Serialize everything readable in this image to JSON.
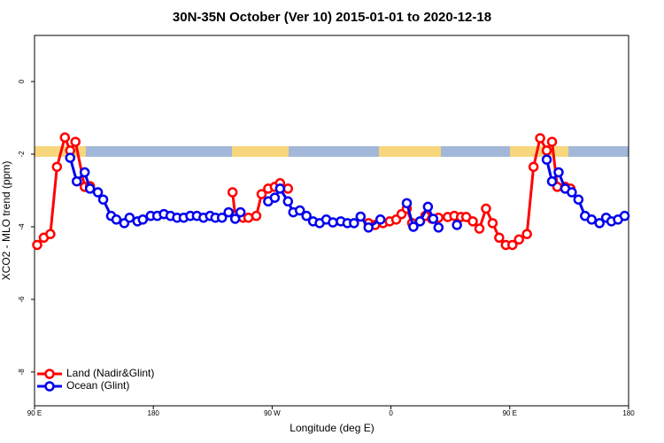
{
  "chart_data": {
    "type": "line",
    "title": "30N-35N October (Ver 10)   2015-01-01 to 2020-12-18",
    "x_label": "Longitude (deg E)",
    "y_label": "XCO2 - MLO trend (ppm)",
    "xlim": [
      90,
      540
    ],
    "ylim": [
      -8.93,
      1.27
    ],
    "xticks": [
      {
        "value": 90,
        "label": "90 E"
      },
      180,
      {
        "value": 270,
        "label": "90 W"
      },
      {
        "value": 360,
        "label": "0"
      },
      {
        "value": 450,
        "label": "90 E"
      },
      {
        "value": 540,
        "label": "180"
      }
    ],
    "yticks": [
      0,
      -2,
      -4,
      -6,
      -8
    ],
    "legend": "bottom-left",
    "series": [
      {
        "name": "Land (Nadir&Glint)",
        "color": "#ff0000",
        "x": [
          92,
          97,
          102,
          107,
          113,
          117,
          121,
          128,
          132,
          null,
          240,
          242,
          248,
          252,
          258,
          262,
          267,
          272,
          276,
          282,
          null,
          343,
          348,
          354,
          359,
          364,
          368,
          372,
          376,
          386,
          391,
          396,
          403,
          408,
          413,
          417,
          422,
          427,
          432,
          437,
          442,
          447,
          452,
          457,
          463,
          468,
          473,
          478,
          482,
          486,
          492,
          496
        ],
        "values": [
          -4.5,
          -4.3,
          -4.2,
          -2.35,
          -1.54,
          -1.9,
          -1.66,
          -2.9,
          -2.88,
          null,
          -3.05,
          -3.7,
          -3.75,
          -3.75,
          -3.7,
          -3.1,
          -2.95,
          -2.9,
          -2.8,
          -2.95,
          null,
          -3.9,
          -3.95,
          -3.9,
          -3.85,
          -3.8,
          -3.65,
          -3.5,
          -3.9,
          -3.7,
          -3.78,
          -3.75,
          -3.73,
          -3.7,
          -3.73,
          -3.73,
          -3.85,
          -4.05,
          -3.5,
          -3.9,
          -4.3,
          -4.5,
          -4.5,
          -4.35,
          -4.2,
          -2.35,
          -1.56,
          -1.9,
          -1.66,
          -2.9,
          -2.9,
          -2.95
        ]
      },
      {
        "name": "Ocean (Glint)",
        "color": "#0000ee",
        "x": [
          117,
          122,
          128,
          132,
          138,
          142,
          148,
          152,
          158,
          162,
          168,
          172,
          178,
          183,
          188,
          193,
          198,
          203,
          208,
          213,
          218,
          223,
          227,
          232,
          237,
          242,
          246,
          null,
          267,
          272,
          276,
          282,
          286,
          291,
          296,
          301,
          306,
          311,
          316,
          322,
          327,
          332,
          337,
          343,
          352,
          null,
          372,
          377,
          382,
          388,
          392,
          396,
          null,
          410,
          null,
          478,
          482,
          487,
          492,
          497,
          502,
          507,
          512,
          518,
          523,
          527,
          532,
          537
        ],
        "values": [
          -2.1,
          -2.75,
          -2.5,
          -2.95,
          -3.05,
          -3.25,
          -3.7,
          -3.8,
          -3.9,
          -3.75,
          -3.85,
          -3.8,
          -3.7,
          -3.7,
          -3.65,
          -3.7,
          -3.75,
          -3.75,
          -3.7,
          -3.7,
          -3.75,
          -3.7,
          -3.75,
          -3.75,
          -3.6,
          -3.78,
          -3.6,
          null,
          -3.3,
          -3.2,
          -2.95,
          -3.3,
          -3.6,
          -3.55,
          -3.7,
          -3.85,
          -3.9,
          -3.8,
          -3.88,
          -3.85,
          -3.9,
          -3.9,
          -3.72,
          -4.02,
          -3.8,
          null,
          -3.35,
          -4.0,
          -3.85,
          -3.45,
          -3.78,
          -4.02,
          null,
          -3.95,
          null,
          -2.15,
          -2.75,
          -2.5,
          -2.95,
          -3.05,
          -3.25,
          -3.7,
          -3.8,
          -3.9,
          -3.75,
          -3.85,
          -3.8,
          -3.7
        ]
      }
    ]
  }
}
